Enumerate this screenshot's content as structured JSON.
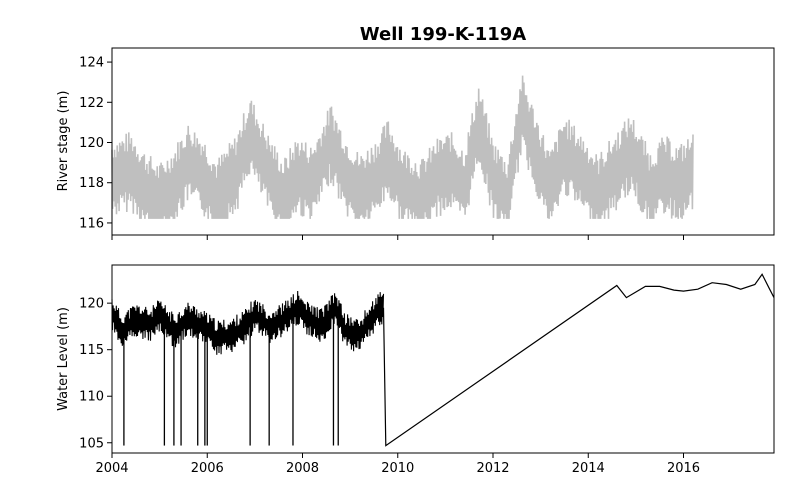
{
  "title": "Well 199-K-119A",
  "chart_data": [
    {
      "type": "line",
      "panel": "top",
      "ylabel": "River stage (m)",
      "ylim": [
        115.4,
        124.7
      ],
      "yticks": [
        116,
        118,
        120,
        122,
        124
      ],
      "xlim": [
        2004,
        2017.9
      ],
      "x_tick_labels_shown": false,
      "series": [
        {
          "color": "#bfbfbf",
          "description_points": [
            [
              2004.0,
              118.2
            ],
            [
              2004.4,
              118.6
            ],
            [
              2004.7,
              117.6
            ],
            [
              2005.0,
              117.0
            ],
            [
              2005.3,
              117.8
            ],
            [
              2005.6,
              119.0
            ],
            [
              2005.9,
              118.4
            ],
            [
              2006.2,
              117.2
            ],
            [
              2006.6,
              118.4
            ],
            [
              2006.9,
              120.4
            ],
            [
              2007.3,
              118.4
            ],
            [
              2007.6,
              117.2
            ],
            [
              2007.9,
              118.4
            ],
            [
              2008.2,
              117.9
            ],
            [
              2008.6,
              120.0
            ],
            [
              2008.9,
              118.4
            ],
            [
              2009.2,
              117.5
            ],
            [
              2009.5,
              118.1
            ],
            [
              2009.8,
              119.2
            ],
            [
              2010.1,
              117.8
            ],
            [
              2010.5,
              117.2
            ],
            [
              2010.8,
              118.2
            ],
            [
              2011.1,
              118.6
            ],
            [
              2011.4,
              117.8
            ],
            [
              2011.7,
              121.0
            ],
            [
              2012.0,
              118.2
            ],
            [
              2012.3,
              117.2
            ],
            [
              2012.6,
              121.5
            ],
            [
              2012.9,
              119.5
            ],
            [
              2013.2,
              117.6
            ],
            [
              2013.5,
              119.4
            ],
            [
              2013.9,
              118.4
            ],
            [
              2014.2,
              117.4
            ],
            [
              2014.6,
              118.6
            ],
            [
              2014.9,
              119.5
            ],
            [
              2015.3,
              117.6
            ],
            [
              2015.6,
              118.4
            ],
            [
              2015.9,
              117.9
            ],
            [
              2016.2,
              118.5
            ]
          ],
          "range_low": 116.2,
          "range_high": 123.6
        }
      ]
    },
    {
      "type": "line",
      "panel": "bottom",
      "ylabel": "Water Level (m)",
      "ylim": [
        103.9,
        124.1
      ],
      "yticks": [
        105,
        110,
        115,
        120
      ],
      "xlim": [
        2004,
        2017.9
      ],
      "xticks": [
        2004,
        2006,
        2008,
        2010,
        2012,
        2014,
        2016
      ],
      "x_tick_labels": [
        "2004",
        "2006",
        "2008",
        "2010",
        "2012",
        "2014",
        "2016"
      ],
      "series": [
        {
          "color": "#000000",
          "points": [
            [
              2004.0,
              119.0
            ],
            [
              2004.2,
              117.0
            ],
            [
              2004.5,
              118.2
            ],
            [
              2004.8,
              117.6
            ],
            [
              2005.0,
              118.6
            ],
            [
              2005.3,
              117.0
            ],
            [
              2005.6,
              118.3
            ],
            [
              2005.9,
              117.5
            ],
            [
              2006.2,
              116.3
            ],
            [
              2006.5,
              116.5
            ],
            [
              2006.8,
              117.5
            ],
            [
              2007.0,
              118.8
            ],
            [
              2007.3,
              117.5
            ],
            [
              2007.6,
              118.2
            ],
            [
              2007.9,
              119.5
            ],
            [
              2008.1,
              118.3
            ],
            [
              2008.4,
              117.6
            ],
            [
              2008.7,
              119.5
            ],
            [
              2008.9,
              117.0
            ],
            [
              2009.2,
              116.5
            ],
            [
              2009.4,
              118.0
            ],
            [
              2009.6,
              119.3
            ],
            [
              2009.7,
              119.5
            ],
            [
              2009.75,
              104.7
            ],
            [
              2014.6,
              121.9
            ],
            [
              2014.8,
              120.6
            ],
            [
              2015.0,
              121.2
            ],
            [
              2015.2,
              121.8
            ],
            [
              2015.5,
              121.8
            ],
            [
              2015.8,
              121.4
            ],
            [
              2016.0,
              121.3
            ],
            [
              2016.3,
              121.5
            ],
            [
              2016.6,
              122.2
            ],
            [
              2016.9,
              122.0
            ],
            [
              2017.2,
              121.5
            ],
            [
              2017.5,
              122.0
            ],
            [
              2017.65,
              123.1
            ],
            [
              2017.8,
              121.6
            ],
            [
              2017.9,
              120.6
            ]
          ],
          "spikes_to": 104.7,
          "spike_x": [
            2004.25,
            2005.1,
            2005.3,
            2005.45,
            2005.8,
            2005.95,
            2006.0,
            2006.9,
            2007.3,
            2007.8,
            2008.65,
            2008.75
          ]
        }
      ]
    }
  ]
}
